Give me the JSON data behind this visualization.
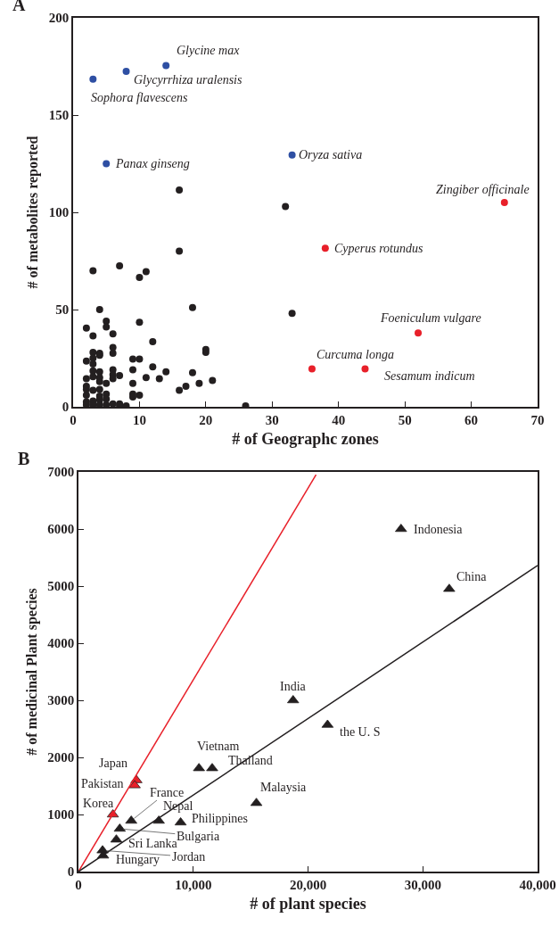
{
  "chart_data": [
    {
      "type": "scatter",
      "title": "A",
      "xlabel": "# of Geographc zones",
      "ylabel": "# of metabolites reported",
      "xlim": [
        0,
        70
      ],
      "ylim": [
        0,
        200
      ],
      "xticks": [
        0,
        10,
        20,
        30,
        40,
        50,
        60,
        70
      ],
      "yticks": [
        0,
        50,
        100,
        150,
        200
      ],
      "marker": "circle",
      "series": [
        {
          "color": "#231f20",
          "x": [
            3,
            7,
            10,
            11,
            16,
            4,
            18,
            33,
            2,
            3,
            5,
            5,
            6,
            10,
            12,
            6,
            6,
            3,
            3,
            3,
            4,
            4,
            2,
            9,
            10,
            20,
            20,
            12,
            9,
            14,
            18,
            6,
            6,
            7,
            6,
            4,
            4,
            4,
            4,
            3,
            3,
            2,
            11,
            13,
            5,
            21,
            19,
            17,
            16,
            9,
            2,
            2,
            2,
            3,
            9,
            9,
            10,
            5,
            2,
            2,
            3,
            3,
            4,
            4,
            5,
            5,
            6,
            7,
            7,
            8,
            26,
            4,
            16,
            32
          ],
          "values": [
            70,
            72.5,
            66.5,
            69.5,
            80,
            50,
            51,
            48,
            40.5,
            36.5,
            44,
            41,
            37.5,
            43.5,
            33.5,
            30.5,
            27.5,
            28,
            25,
            22,
            27.5,
            26.5,
            23.5,
            24.5,
            24.5,
            29.5,
            28,
            20.5,
            19,
            18,
            17.5,
            19,
            16.5,
            16,
            14.5,
            18,
            15,
            13,
            9,
            18.5,
            15.5,
            14.5,
            15,
            14.5,
            12,
            13.5,
            12,
            10.5,
            8.5,
            12,
            10.5,
            9,
            6,
            8.5,
            6.5,
            5,
            6,
            6.5,
            2.5,
            1,
            3,
            1,
            3.5,
            1,
            4,
            1,
            1.5,
            1.5,
            0.5,
            0.5,
            0.5,
            5.5,
            111.5,
            103
          ]
        },
        {
          "color": "#2e4fa3",
          "x": [
            14,
            8,
            3,
            5,
            33
          ],
          "values": [
            175.5,
            172.5,
            168.5,
            125,
            129.5
          ]
        },
        {
          "color": "#e8202a",
          "x": [
            65,
            38,
            52,
            36,
            44
          ],
          "values": [
            105,
            81.5,
            38,
            19.5,
            19.5
          ]
        }
      ],
      "annotations": [
        {
          "text": "Glycine max",
          "x": 14,
          "y": 175.5
        },
        {
          "text": "Glycyrrhiza uralensis",
          "x": 8,
          "y": 172.5
        },
        {
          "text": "Sophora flavescens",
          "x": 3,
          "y": 168.5
        },
        {
          "text": "Panax ginseng",
          "x": 5,
          "y": 125
        },
        {
          "text": "Oryza sativa",
          "x": 33,
          "y": 129.5
        },
        {
          "text": "Zingiber officinale",
          "x": 65,
          "y": 105
        },
        {
          "text": "Cyperus rotundus",
          "x": 38,
          "y": 81.5
        },
        {
          "text": "Foeniculum vulgare",
          "x": 52,
          "y": 38
        },
        {
          "text": "Curcuma longa",
          "x": 36,
          "y": 19.5
        },
        {
          "text": "Sesamum indicum",
          "x": 44,
          "y": 19.5
        }
      ]
    },
    {
      "type": "scatter",
      "title": "B",
      "xlabel": "# of plant species",
      "ylabel": "# of medicinal Plant species",
      "xlim": [
        0,
        40000
      ],
      "ylim": [
        0,
        7000
      ],
      "xticks": [
        0,
        {
          "value": 10000,
          "label": "10,000"
        },
        {
          "value": 20000,
          "label": "20,000"
        },
        {
          "value": 30000,
          "label": "30,000"
        },
        {
          "value": 40000,
          "label": "40,000"
        }
      ],
      "yticks": [
        0,
        1000,
        2000,
        3000,
        4000,
        5000,
        6000,
        7000
      ],
      "marker": "triangle",
      "series": [
        {
          "color": "#231f20",
          "x": [
            28100,
            32300,
            18700,
            21700,
            10500,
            11650,
            4600,
            7000,
            8900,
            15500,
            3600,
            3300,
            2100,
            2150
          ],
          "values": [
            6000,
            4950,
            3000,
            2570,
            1810,
            1810,
            890,
            890,
            860,
            1200,
            750,
            560,
            370,
            280
          ]
        },
        {
          "color": "#e8202a",
          "x": [
            5050,
            4900,
            3000
          ],
          "values": [
            1600,
            1510,
            1000
          ]
        },
        {
          "type": "line",
          "marker": "none",
          "color": "#e8202a",
          "x": [
            0,
            20700
          ],
          "values": [
            0,
            6950
          ]
        },
        {
          "type": "line",
          "marker": "none",
          "color": "#231f20",
          "x": [
            0,
            40000
          ],
          "values": [
            0,
            5360
          ]
        }
      ],
      "annotations": [
        {
          "text": "Indonesia",
          "x": 28100,
          "y": 6000
        },
        {
          "text": "China",
          "x": 32300,
          "y": 4950
        },
        {
          "text": "India",
          "x": 18700,
          "y": 3000
        },
        {
          "text": "the U. S",
          "x": 21700,
          "y": 2570
        },
        {
          "text": "Vietnam",
          "x": 10500,
          "y": 1810
        },
        {
          "text": "Thailand",
          "x": 11650,
          "y": 1810
        },
        {
          "text": "Japan",
          "x": 5050,
          "y": 1600
        },
        {
          "text": "Pakistan",
          "x": 4900,
          "y": 1510
        },
        {
          "text": "Korea",
          "x": 3000,
          "y": 1000
        },
        {
          "text": "France",
          "x": 4600,
          "y": 890
        },
        {
          "text": "Nepal",
          "x": 7000,
          "y": 890
        },
        {
          "text": "Philippines",
          "x": 8900,
          "y": 860
        },
        {
          "text": "Malaysia",
          "x": 15500,
          "y": 1200
        },
        {
          "text": "Bulgaria",
          "x": 3600,
          "y": 750
        },
        {
          "text": "Sri Lanka",
          "x": 3300,
          "y": 560
        },
        {
          "text": "Jordan",
          "x": 2100,
          "y": 370
        },
        {
          "text": "Hungary",
          "x": 2150,
          "y": 280
        }
      ]
    }
  ]
}
